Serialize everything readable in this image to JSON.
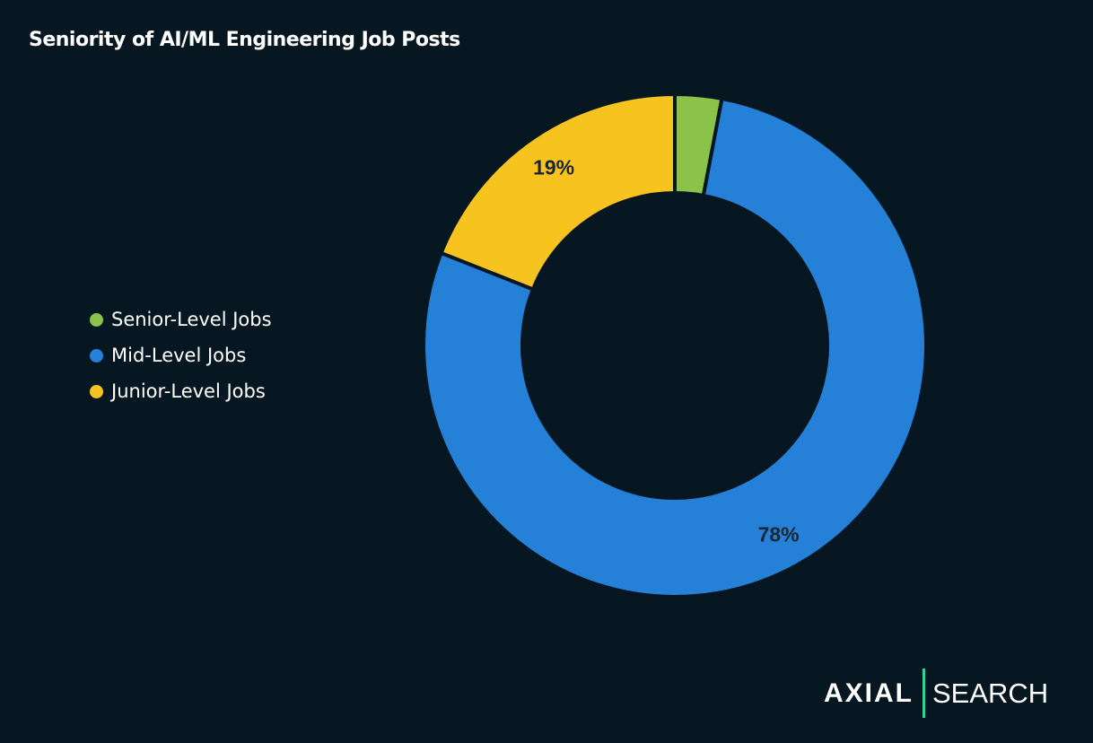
{
  "chart_data": {
    "type": "pie",
    "donut": true,
    "title": "Seniority of AI/ML Engineering Job Posts",
    "categories": [
      "Senior-Level Jobs",
      "Mid-Level Jobs",
      "Junior-Level Jobs"
    ],
    "values": [
      3,
      78,
      19
    ],
    "unit": "%",
    "data_labels": [
      "",
      "78%",
      "19%"
    ],
    "colors": [
      "#8BC34A",
      "#2481D7",
      "#F7C31F"
    ],
    "legend_position": "left"
  },
  "brand": {
    "part1": "AXIAL",
    "part2": "SEARCH",
    "accent": "#2fd3a0"
  }
}
